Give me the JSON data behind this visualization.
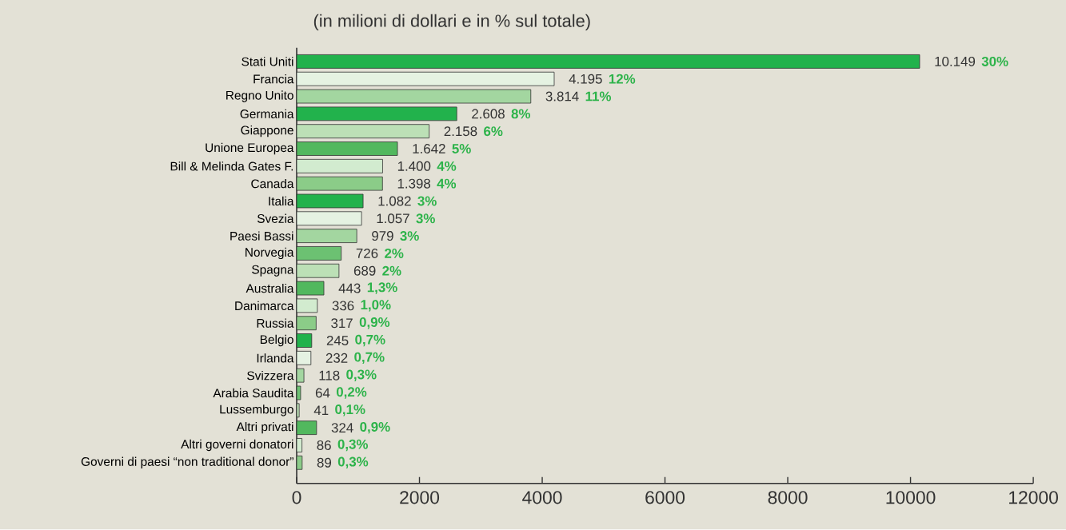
{
  "chart_data": {
    "type": "bar",
    "orientation": "horizontal",
    "title": "(in milioni di dollari e in % sul totale)",
    "categories": [
      "Stati Uniti",
      "Francia",
      "Regno Unito",
      "Germania",
      "Giappone",
      "Unione Europea",
      "Bill & Melinda Gates F.",
      "Canada",
      "Italia",
      "Svezia",
      "Paesi Bassi",
      "Norvegia",
      "Spagna",
      "Australia",
      "Danimarca",
      "Russia",
      "Belgio",
      "Irlanda",
      "Svizzera",
      "Arabia Saudita",
      "Lussemburgo",
      "Altri privati",
      "Altri governi donatori",
      "Governi di paesi “non traditional donor”"
    ],
    "values": [
      10149,
      4195,
      3814,
      2608,
      2158,
      1642,
      1400,
      1398,
      1082,
      1057,
      979,
      726,
      689,
      443,
      336,
      317,
      245,
      232,
      118,
      64,
      41,
      324,
      86,
      89
    ],
    "value_labels": [
      "10.149",
      "4.195",
      "3.814",
      "2.608",
      "2.158",
      "1.642",
      "1.400",
      "1.398",
      "1.082",
      "1.057",
      "979",
      "726",
      "689",
      "443",
      "336",
      "317",
      "245",
      "232",
      "118",
      "64",
      "41",
      "324",
      "86",
      "89"
    ],
    "colors": [
      "#22b24c",
      "#e5f2e2",
      "#a3d6a0",
      "#22b24c",
      "#bce0b6",
      "#52b85e",
      "#d2ebcf",
      "#8bcc88",
      "#22b24c",
      "#e5f2e2",
      "#a3d6a0",
      "#6cc172",
      "#bce0b6",
      "#52b85e",
      "#d2ebcf",
      "#8bcc88",
      "#22b24c",
      "#e5f2e2",
      "#a3d6a0",
      "#6cc172",
      "#bce0b6",
      "#52b85e",
      "#d2ebcf",
      "#8bcc88"
    ],
    "annotations": [
      "30%",
      "12%",
      "11%",
      "8%",
      "6%",
      "5%",
      "4%",
      "4%",
      "3%",
      "3%",
      "3%",
      "2%",
      "2%",
      "1,3%",
      "1,0%",
      "0,9%",
      "0,7%",
      "0,7%",
      "0,3%",
      "0,2%",
      "0,1%",
      "0,9%",
      "0,3%",
      "0,3%"
    ],
    "xlim": [
      0,
      12000
    ],
    "xticks": [
      0,
      2000,
      4000,
      6000,
      8000,
      10000,
      12000
    ]
  }
}
